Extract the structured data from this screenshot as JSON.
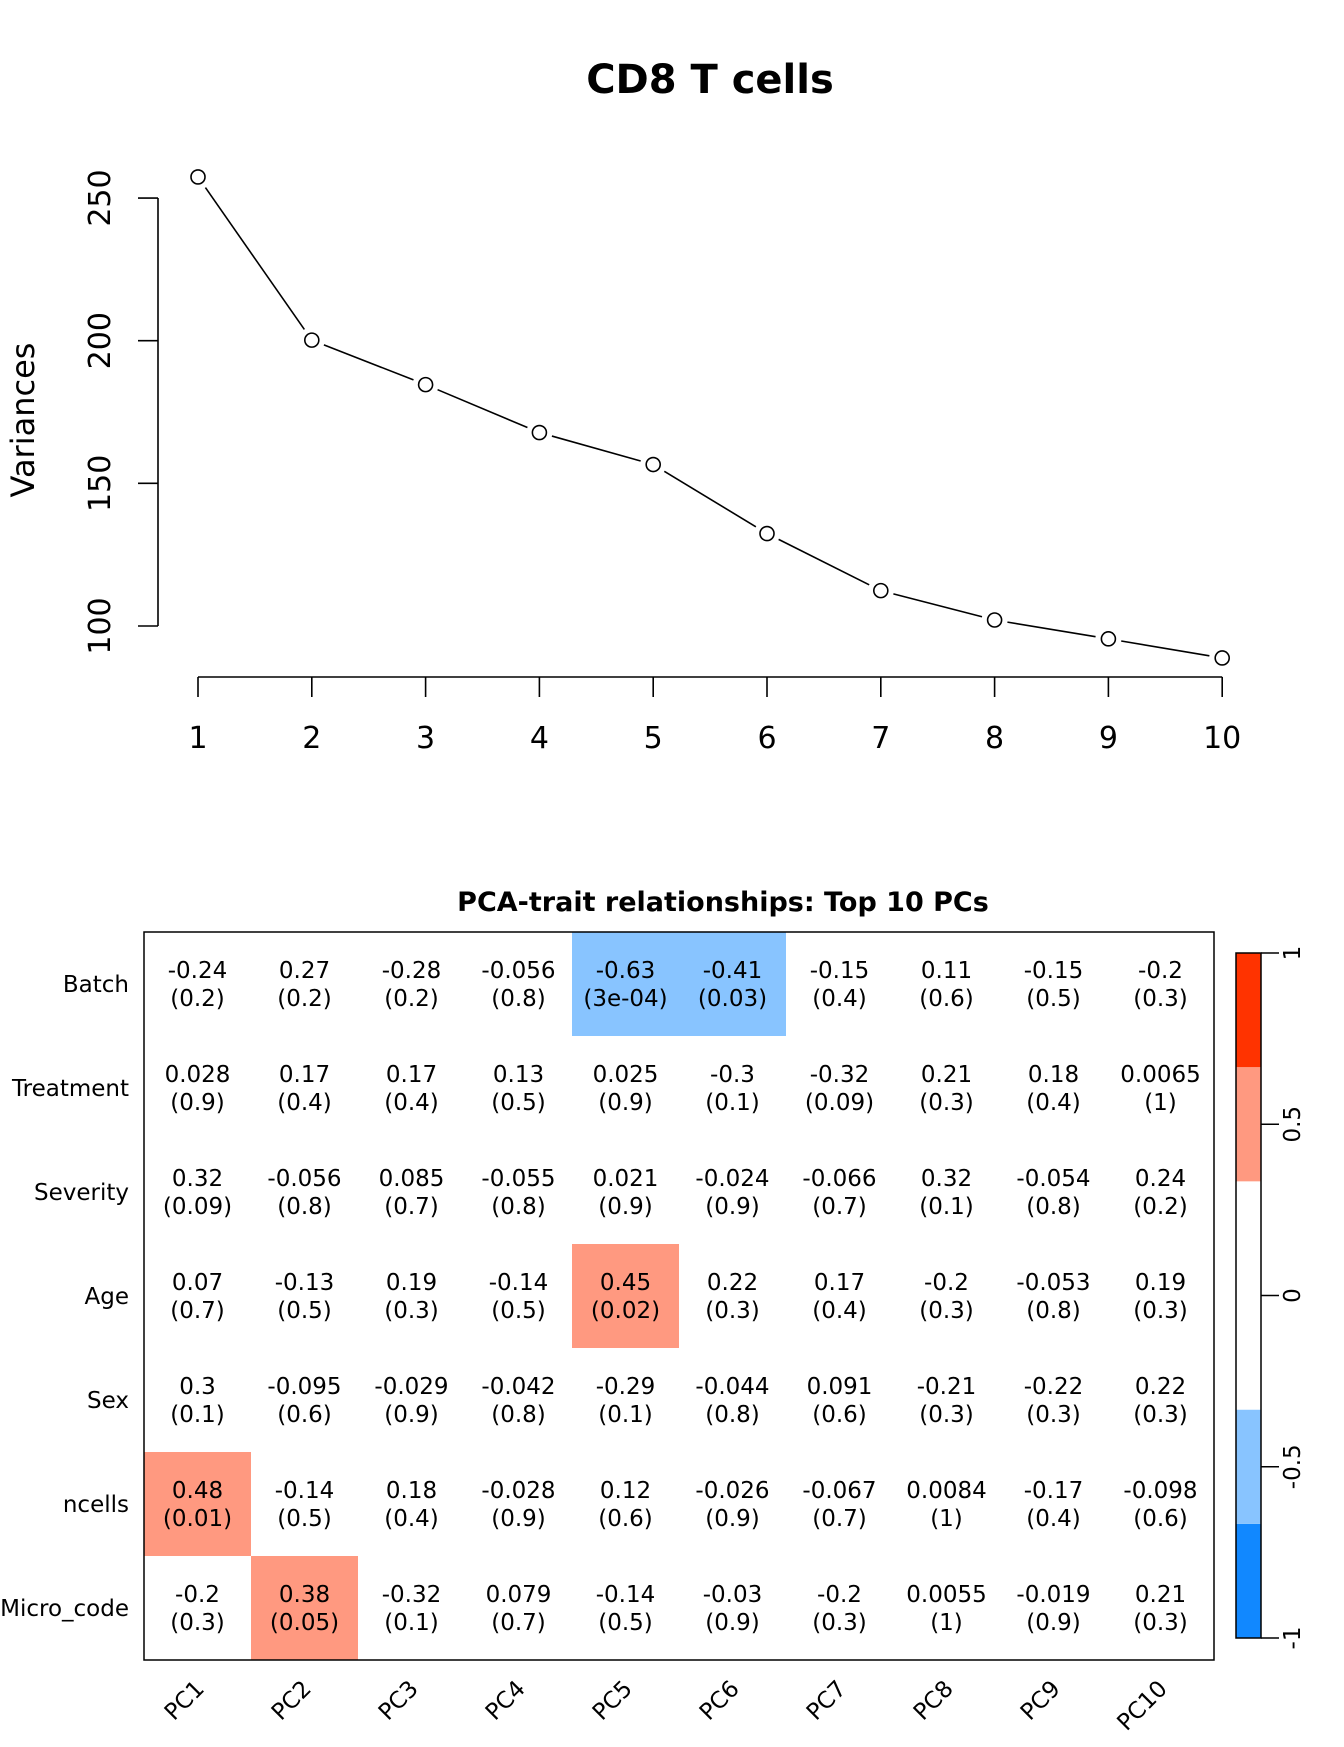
{
  "chart_data": [
    {
      "type": "line",
      "title": "CD8 T cells",
      "xlabel": "",
      "ylabel": "Variances",
      "x": [
        1,
        2,
        3,
        4,
        5,
        6,
        7,
        8,
        9,
        10
      ],
      "values": [
        257.4,
        200.2,
        184.6,
        167.8,
        156.6,
        132.4,
        112.4,
        102.1,
        95.5,
        88.8
      ],
      "xticks": [
        "1",
        "2",
        "3",
        "4",
        "5",
        "6",
        "7",
        "8",
        "9",
        "10"
      ],
      "yticks": [
        100,
        150,
        200,
        250
      ],
      "ylim": [
        100,
        250
      ],
      "marker": "open-circle",
      "grid": false
    },
    {
      "type": "heatmap",
      "title": "PCA-trait relationships: Top 10 PCs",
      "rows": [
        "Batch",
        "Treatment",
        "Severity",
        "Age",
        "Sex",
        "ncells",
        "Micro_code"
      ],
      "columns": [
        "PC1",
        "PC2",
        "PC3",
        "PC4",
        "PC5",
        "PC6",
        "PC7",
        "PC8",
        "PC9",
        "PC10"
      ],
      "correlations": [
        [
          "-0.24",
          "0.27",
          "-0.28",
          "-0.056",
          "-0.63",
          "-0.41",
          "-0.15",
          "0.11",
          "-0.15",
          "-0.2"
        ],
        [
          "0.028",
          "0.17",
          "0.17",
          "0.13",
          "0.025",
          "-0.3",
          "-0.32",
          "0.21",
          "0.18",
          "0.0065"
        ],
        [
          "0.32",
          "-0.056",
          "0.085",
          "-0.055",
          "0.021",
          "-0.024",
          "-0.066",
          "0.32",
          "-0.054",
          "0.24"
        ],
        [
          "0.07",
          "-0.13",
          "0.19",
          "-0.14",
          "0.45",
          "0.22",
          "0.17",
          "-0.2",
          "-0.053",
          "0.19"
        ],
        [
          "0.3",
          "-0.095",
          "-0.029",
          "-0.042",
          "-0.29",
          "-0.044",
          "0.091",
          "-0.21",
          "-0.22",
          "0.22"
        ],
        [
          "0.48",
          "-0.14",
          "0.18",
          "-0.028",
          "0.12",
          "-0.026",
          "-0.067",
          "0.0084",
          "-0.17",
          "-0.098"
        ],
        [
          "-0.2",
          "0.38",
          "-0.32",
          "0.079",
          "-0.14",
          "-0.03",
          "-0.2",
          "0.0055",
          "-0.019",
          "0.21"
        ]
      ],
      "pvalues": [
        [
          "(0.2)",
          "(0.2)",
          "(0.2)",
          "(0.8)",
          "(3e-04)",
          "(0.03)",
          "(0.4)",
          "(0.6)",
          "(0.5)",
          "(0.3)"
        ],
        [
          "(0.9)",
          "(0.4)",
          "(0.4)",
          "(0.5)",
          "(0.9)",
          "(0.1)",
          "(0.09)",
          "(0.3)",
          "(0.4)",
          "(1)"
        ],
        [
          "(0.09)",
          "(0.8)",
          "(0.7)",
          "(0.8)",
          "(0.9)",
          "(0.9)",
          "(0.7)",
          "(0.1)",
          "(0.8)",
          "(0.2)"
        ],
        [
          "(0.7)",
          "(0.5)",
          "(0.3)",
          "(0.5)",
          "(0.02)",
          "(0.3)",
          "(0.4)",
          "(0.3)",
          "(0.8)",
          "(0.3)"
        ],
        [
          "(0.1)",
          "(0.6)",
          "(0.9)",
          "(0.8)",
          "(0.1)",
          "(0.8)",
          "(0.6)",
          "(0.3)",
          "(0.3)",
          "(0.3)"
        ],
        [
          "(0.01)",
          "(0.5)",
          "(0.4)",
          "(0.9)",
          "(0.6)",
          "(0.9)",
          "(0.7)",
          "(1)",
          "(0.4)",
          "(0.6)"
        ],
        [
          "(0.3)",
          "(0.05)",
          "(0.1)",
          "(0.7)",
          "(0.5)",
          "(0.9)",
          "(0.3)",
          "(1)",
          "(0.9)",
          "(0.3)"
        ]
      ],
      "colorscale": {
        "range": [
          -1,
          1
        ],
        "ticks": [
          "-1",
          "-0.5",
          "0",
          "0.5",
          "1"
        ],
        "bands": [
          {
            "from": -1,
            "to": -0.6667,
            "color": "#1188FF"
          },
          {
            "from": -0.6667,
            "to": -0.3333,
            "color": "#88C4FF"
          },
          {
            "from": -0.3333,
            "to": 0.3333,
            "color": "#FFFFFF"
          },
          {
            "from": 0.3333,
            "to": 0.6667,
            "color": "#FF9980"
          },
          {
            "from": 0.6667,
            "to": 1,
            "color": "#FF3300"
          }
        ]
      }
    }
  ]
}
